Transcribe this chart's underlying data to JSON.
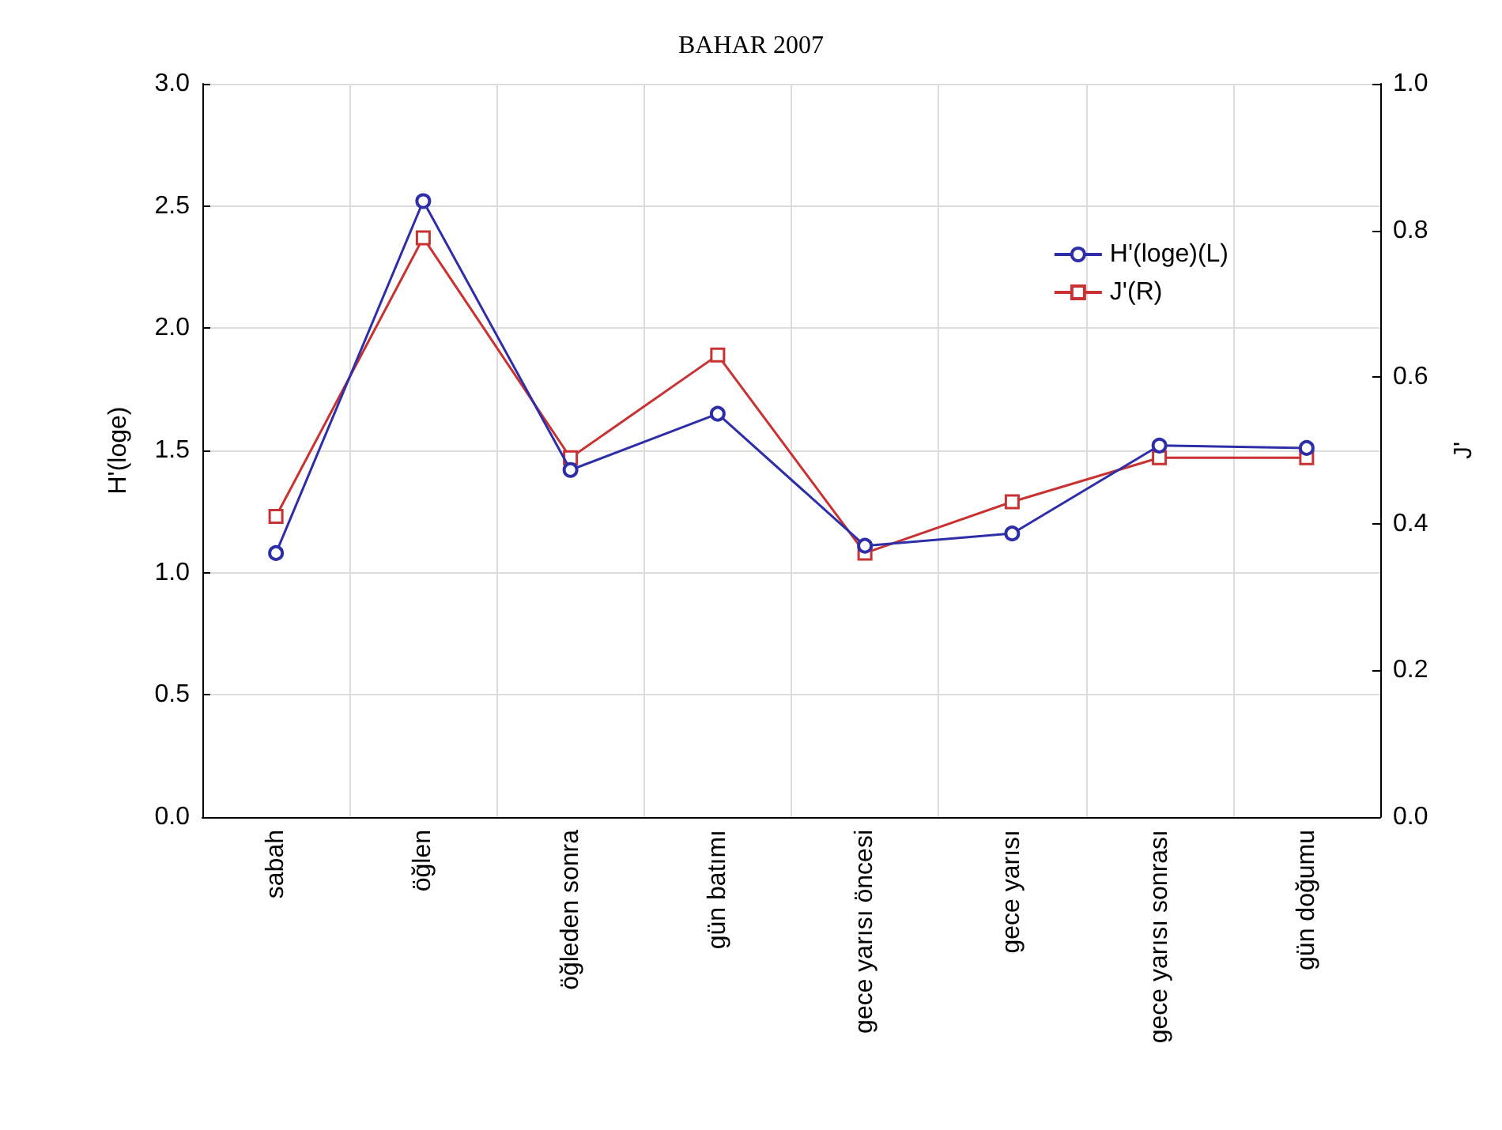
{
  "chart_data": {
    "type": "line",
    "title": "BAHAR 2007",
    "ylabel": "H'(loge)",
    "y2label": "J'",
    "categories": [
      "sabah",
      "öğlen",
      "öğleden sonra",
      "gün batımı",
      "gece yarısı öncesi",
      "gece yarısı",
      "gece yarısı sonrası",
      "gün doğumu"
    ],
    "series": [
      {
        "name": "H'(loge)(L)",
        "color": "#2e2ea8",
        "marker": "circle",
        "values": [
          1.08,
          2.52,
          1.42,
          1.65,
          1.11,
          1.16,
          1.52,
          1.51
        ]
      },
      {
        "name": "J'(R)",
        "color": "#c83232",
        "marker": "square",
        "axis": "y2",
        "values": [
          0.41,
          0.79,
          0.49,
          0.63,
          0.36,
          0.43,
          0.49,
          0.49
        ]
      }
    ],
    "ylim": [
      0,
      3
    ],
    "yticks": [
      {
        "value": 0,
        "label": "0.0"
      },
      0.5,
      {
        "value": 1,
        "label": "1.0"
      },
      1.5,
      {
        "value": 2,
        "label": "2.0"
      },
      2.5,
      {
        "value": 3,
        "label": "3.0"
      }
    ],
    "y2lim": [
      0,
      1
    ],
    "y2ticks": [
      {
        "value": 0,
        "label": "0.0"
      },
      0.2,
      0.4,
      0.6,
      0.8,
      {
        "value": 1,
        "label": "1.0"
      }
    ],
    "grid": true,
    "legend": "top right"
  }
}
